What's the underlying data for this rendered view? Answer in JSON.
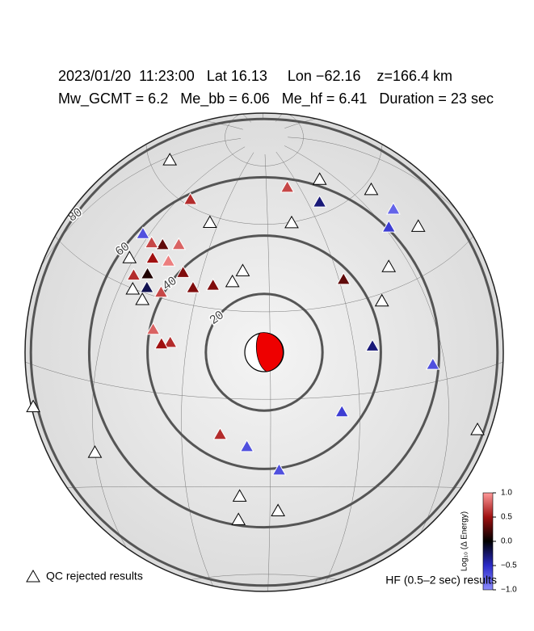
{
  "header": {
    "line1": "2023/01/20  11:23:00   Lat 16.13     Lon −62.16    z=166.4 km",
    "line2": "Mw_GCMT = 6.2   Me_bb = 6.06   Me_hf = 6.41   Duration = 23 sec"
  },
  "map": {
    "center": {
      "lat": 16.13,
      "lon": -62.16
    },
    "distance_rings": [
      20,
      40,
      60,
      80
    ],
    "stations": [
      {
        "lat": 15,
        "lon": -23.5,
        "value": -0.3
      },
      {
        "lat": 5.3,
        "lon": -4,
        "value": -0.7
      },
      {
        "lat": -5,
        "lon": -36,
        "value": -0.6
      },
      {
        "lat": -12,
        "lon": -77,
        "value": 0.6
      },
      {
        "lat": -16,
        "lon": -68,
        "value": -0.7
      },
      {
        "lat": -24,
        "lon": -57,
        "value": -0.7
      },
      {
        "lat": 50,
        "lon": 10,
        "value": -0.8
      },
      {
        "lat": 47,
        "lon": 2,
        "value": -0.6
      },
      {
        "lat": 64,
        "lon": -22,
        "value": -0.3
      },
      {
        "lat": 72,
        "lon": -40,
        "value": 0.7
      },
      {
        "lat": 62,
        "lon": -114,
        "value": 0.6
      },
      {
        "lat": 38,
        "lon": -28,
        "value": 0.3
      },
      {
        "lat": 48,
        "lon": -105,
        "value": 0.8
      },
      {
        "lat": 46,
        "lon": -112,
        "value": 0.3
      },
      {
        "lat": 45,
        "lon": -117,
        "value": 0.7
      },
      {
        "lat": 46,
        "lon": -123,
        "value": -0.7
      },
      {
        "lat": 41,
        "lon": -113,
        "value": 0.5
      },
      {
        "lat": 42,
        "lon": -106,
        "value": 0.9
      },
      {
        "lat": 40,
        "lon": -98,
        "value": 0.4
      },
      {
        "lat": 36,
        "lon": -112,
        "value": 0.1
      },
      {
        "lat": 34,
        "lon": -117,
        "value": 0.6
      },
      {
        "lat": 32,
        "lon": -110,
        "value": -0.2
      },
      {
        "lat": 32,
        "lon": -104,
        "value": 0.7
      },
      {
        "lat": 36,
        "lon": -92,
        "value": 0.4
      },
      {
        "lat": 38,
        "lon": -84,
        "value": 0.4
      },
      {
        "lat": 20,
        "lon": -103,
        "value": 0.8
      },
      {
        "lat": 17,
        "lon": -96,
        "value": 0.6
      },
      {
        "lat": 16,
        "lon": -99,
        "value": 0.5
      },
      {
        "lat": 40,
        "lon": -76,
        "value": null
      },
      {
        "lat": 38,
        "lon": -122,
        "value": null
      },
      {
        "lat": 30,
        "lon": -115,
        "value": null
      },
      {
        "lat": 28,
        "lon": -110,
        "value": null
      },
      {
        "lat": 44,
        "lon": -72,
        "value": null
      },
      {
        "lat": 65,
        "lon": -148,
        "value": null
      },
      {
        "lat": 70,
        "lon": -10,
        "value": null
      },
      {
        "lat": 60,
        "lon": -45,
        "value": null
      },
      {
        "lat": 58,
        "lon": 10,
        "value": null
      },
      {
        "lat": 42,
        "lon": 13,
        "value": null
      },
      {
        "lat": 37,
        "lon": -8,
        "value": null
      },
      {
        "lat": 28,
        "lon": -16,
        "value": null
      },
      {
        "lat": -15,
        "lon": 10,
        "value": null
      },
      {
        "lat": -33,
        "lon": -71,
        "value": null
      },
      {
        "lat": -41,
        "lon": -72,
        "value": null
      },
      {
        "lat": -38,
        "lon": -57,
        "value": null
      },
      {
        "lat": -20,
        "lon": -120,
        "value": null
      },
      {
        "lat": -10,
        "lon": -140,
        "value": null
      },
      {
        "lat": 20,
        "lon": -156,
        "value": null
      },
      {
        "lat": 58,
        "lon": -95,
        "value": null
      }
    ]
  },
  "colorbar": {
    "label": "Log₁₀ (Δ Energy)",
    "lim": [
      -1,
      1
    ],
    "ticks": [
      {
        "value": 1,
        "label": "1.0"
      },
      {
        "value": 0.5,
        "label": "0.5"
      },
      {
        "value": 0,
        "label": "0.0"
      },
      {
        "value": -0.5,
        "label": "−0.5"
      },
      {
        "value": -1,
        "label": "−1.0"
      }
    ],
    "colors": [
      "#8a8aff",
      "#2a2ac8",
      "#000000",
      "#a01010",
      "#ff9a9a"
    ]
  },
  "legend": {
    "rejected": "QC rejected results",
    "hf": "HF (0.5–2 sec) results"
  }
}
